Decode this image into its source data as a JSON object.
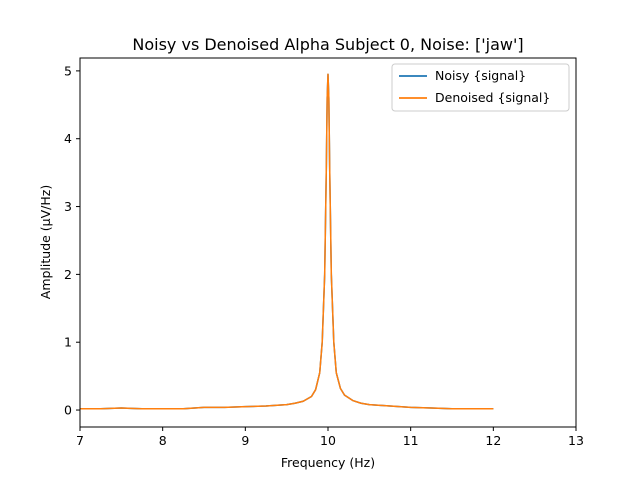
{
  "chart_data": {
    "type": "line",
    "title": "Noisy vs Denoised Alpha Subject 0, Noise: ['jaw']",
    "xlabel": "Frequency (Hz)",
    "ylabel": "Amplitude (μV/Hz)",
    "xlim": [
      7,
      13
    ],
    "ylim": [
      -0.25,
      5.19
    ],
    "x_ticks": [
      "7",
      "8",
      "9",
      "10",
      "11",
      "12",
      "13"
    ],
    "y_ticks": [
      "0",
      "1",
      "2",
      "3",
      "4",
      "5"
    ],
    "grid": false,
    "legend_position": "top-right",
    "series": [
      {
        "name": "Noisy {signal}",
        "color": "#1f77b4",
        "x": [
          7.0,
          7.25,
          7.5,
          7.75,
          8.0,
          8.25,
          8.5,
          8.75,
          9.0,
          9.25,
          9.5,
          9.6,
          9.7,
          9.8,
          9.85,
          9.9,
          9.93,
          9.96,
          9.98,
          9.99,
          10.0,
          10.01,
          10.02,
          10.04,
          10.07,
          10.1,
          10.15,
          10.2,
          10.3,
          10.4,
          10.5,
          10.75,
          11.0,
          11.25,
          11.5,
          11.75,
          12.0
        ],
        "y": [
          0.02,
          0.02,
          0.03,
          0.02,
          0.02,
          0.02,
          0.04,
          0.04,
          0.05,
          0.06,
          0.08,
          0.1,
          0.13,
          0.2,
          0.3,
          0.55,
          1.0,
          2.0,
          3.6,
          4.6,
          4.95,
          4.6,
          3.6,
          2.0,
          1.0,
          0.55,
          0.32,
          0.22,
          0.14,
          0.1,
          0.08,
          0.06,
          0.04,
          0.03,
          0.02,
          0.02,
          0.02
        ]
      },
      {
        "name": "Denoised {signal}",
        "color": "#ff7f0e",
        "x": [
          7.0,
          7.25,
          7.5,
          7.75,
          8.0,
          8.25,
          8.5,
          8.75,
          9.0,
          9.25,
          9.5,
          9.6,
          9.7,
          9.8,
          9.85,
          9.9,
          9.93,
          9.96,
          9.98,
          9.99,
          10.0,
          10.01,
          10.02,
          10.04,
          10.07,
          10.1,
          10.15,
          10.2,
          10.3,
          10.4,
          10.5,
          10.75,
          11.0,
          11.25,
          11.5,
          11.75,
          12.0
        ],
        "y": [
          0.02,
          0.02,
          0.03,
          0.02,
          0.02,
          0.02,
          0.04,
          0.04,
          0.05,
          0.06,
          0.08,
          0.1,
          0.13,
          0.2,
          0.3,
          0.55,
          1.0,
          2.0,
          3.6,
          4.6,
          4.95,
          4.6,
          3.6,
          2.0,
          1.0,
          0.55,
          0.32,
          0.22,
          0.14,
          0.1,
          0.08,
          0.06,
          0.04,
          0.03,
          0.02,
          0.02,
          0.02
        ]
      }
    ]
  }
}
